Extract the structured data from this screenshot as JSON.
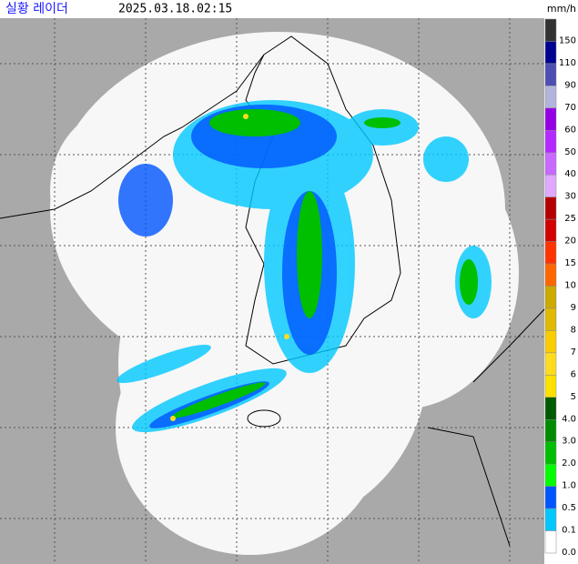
{
  "header": {
    "title": "실황 레이더",
    "time": "2025.03.18.02:15"
  },
  "legend": {
    "unit": "mm/h",
    "items": [
      {
        "label": "150",
        "color": "#333333"
      },
      {
        "label": "110",
        "color": "#000390"
      },
      {
        "label": "90",
        "color": "#4c4eb1"
      },
      {
        "label": "70",
        "color": "#b3b4de"
      },
      {
        "label": "60",
        "color": "#9300e4"
      },
      {
        "label": "50",
        "color": "#b329ff"
      },
      {
        "label": "40",
        "color": "#c969ff"
      },
      {
        "label": "30",
        "color": "#e0a9ff"
      },
      {
        "label": "25",
        "color": "#b40000"
      },
      {
        "label": "20",
        "color": "#d20000"
      },
      {
        "label": "15",
        "color": "#ff3300"
      },
      {
        "label": "10",
        "color": "#ff6600"
      },
      {
        "label": "9",
        "color": "#ccaa00"
      },
      {
        "label": "8",
        "color": "#e0b900"
      },
      {
        "label": "7",
        "color": "#f9cd00"
      },
      {
        "label": "6",
        "color": "#ffdc1f"
      },
      {
        "label": "5",
        "color": "#ffe100"
      },
      {
        "label": "4.0",
        "color": "#005a00"
      },
      {
        "label": "3.0",
        "color": "#008c00"
      },
      {
        "label": "2.0",
        "color": "#00be00"
      },
      {
        "label": "1.0",
        "color": "#00ff00"
      },
      {
        "label": "0.5",
        "color": "#0055ff"
      },
      {
        "label": "0.1",
        "color": "#00c8ff"
      },
      {
        "label": "0.0",
        "color": "#ffffff"
      }
    ]
  }
}
